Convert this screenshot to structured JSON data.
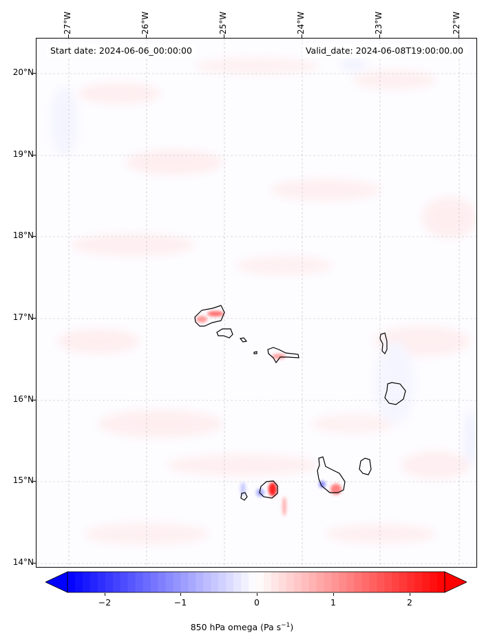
{
  "map": {
    "start_date_label": "Start date: 2024-06-06_00:00:00",
    "valid_date_label": "Valid_date: 2024-06-08T19:00:00.00",
    "lon_ticks": [
      "27°W",
      "26°W",
      "25°W",
      "24°W",
      "23°W",
      "22°W"
    ],
    "lat_ticks": [
      "20°N",
      "19°N",
      "18°N",
      "17°N",
      "16°N",
      "15°N",
      "14°N"
    ],
    "islands": [
      "Santo Antão",
      "São Vicente",
      "Santa Luzia",
      "Branco",
      "São Nicolau",
      "Sal",
      "Boa Vista",
      "Santiago",
      "Maio",
      "Fogo",
      "Brava"
    ],
    "gridlines": "on",
    "background_color": "#fdfcff"
  },
  "colorbar": {
    "ticks": [
      "−2",
      "−1",
      "0",
      "1",
      "2"
    ],
    "range": [
      -2.6,
      2.6
    ],
    "min_color": "#0000ff",
    "mid_color": "#ffffff",
    "max_color": "#ff0000",
    "extend": "both",
    "label_prefix": "850 hPa omega (Pa s",
    "label_exponent": "−1",
    "label_suffix": ")"
  }
}
